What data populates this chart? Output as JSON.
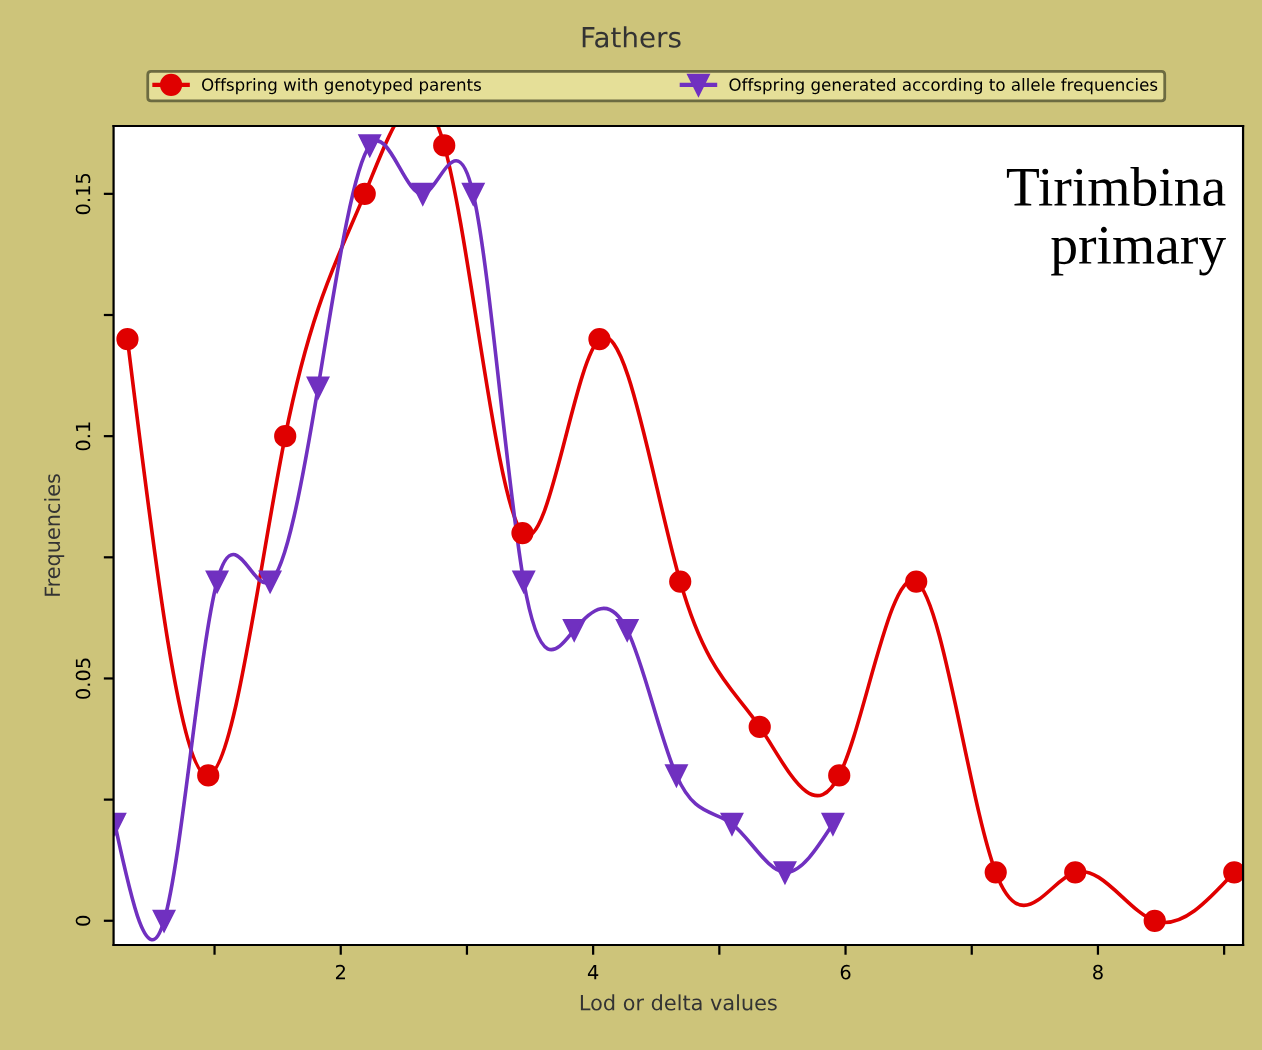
{
  "chart_data": {
    "type": "line",
    "title": "Fathers",
    "xlabel": "Lod or delta values",
    "ylabel": "Frequencies",
    "annotations": [
      "Tirimbina\nprimary"
    ],
    "xlim": [
      0.2,
      9.15
    ],
    "ylim": [
      -0.005,
      0.164
    ],
    "xticks": [
      {
        "value": 1,
        "label": null
      },
      2,
      {
        "value": 3,
        "label": null
      },
      4,
      {
        "value": 5,
        "label": null
      },
      6,
      {
        "value": 7,
        "label": null
      },
      8,
      {
        "value": 9,
        "label": null
      }
    ],
    "yticks": [
      0,
      {
        "value": 0.025,
        "label": null
      },
      0.05,
      {
        "value": 0.075,
        "label": null
      },
      0.1,
      {
        "value": 0.125,
        "label": null
      },
      0.15
    ],
    "grid": false,
    "legend": "top",
    "line_style": "solid",
    "series": [
      {
        "name": "Offspring with genotyped parents",
        "color": "#e00000",
        "marker": "circle",
        "x": [
          0.31,
          0.95,
          1.56,
          2.19,
          2.82,
          3.44,
          4.05,
          4.69,
          5.32,
          5.95,
          6.56,
          7.19,
          7.82,
          8.45,
          9.08
        ],
        "values": [
          0.12,
          0.03,
          0.1,
          0.15,
          0.16,
          0.08,
          0.12,
          0.07,
          0.04,
          0.03,
          0.07,
          0.01,
          0.01,
          0,
          0.01
        ]
      },
      {
        "name": "Offspring generated according to allele frequencies",
        "color": "#7030c0",
        "marker": "triangle",
        "x": [
          0.21,
          0.6,
          1.02,
          1.44,
          1.82,
          2.23,
          2.65,
          3.05,
          3.45,
          3.85,
          4.27,
          4.66,
          5.1,
          5.52,
          5.9
        ],
        "values": [
          0.02,
          0,
          0.07,
          0.07,
          0.11,
          0.16,
          0.15,
          0.15,
          0.07,
          0.06,
          0.06,
          0.03,
          0.02,
          0.01,
          0.02
        ]
      }
    ]
  }
}
